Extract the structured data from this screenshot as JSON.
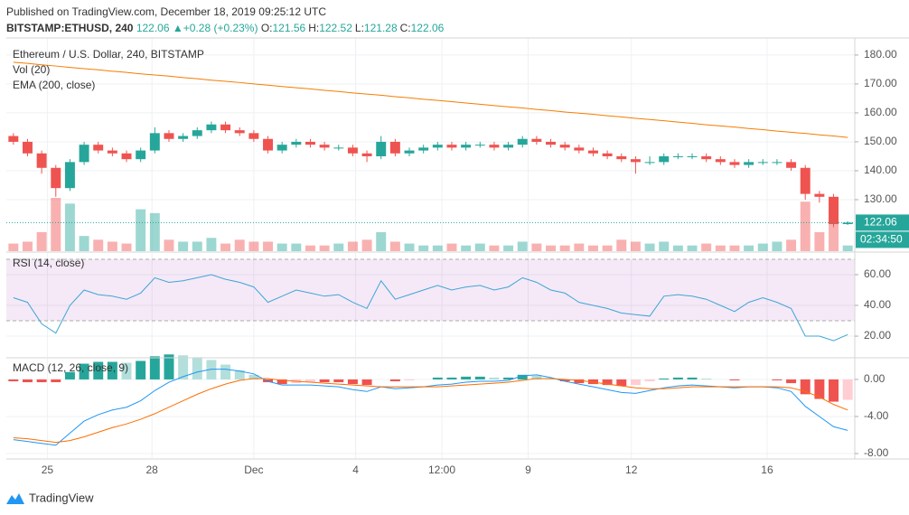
{
  "header": {
    "published": "Published on TradingView.com, December 18, 2019 09:25:12 UTC",
    "symbol": "BITSTAMP:ETHUSD, 240",
    "price": "122.06",
    "change": "+0.28 (+0.23%)",
    "ohlc": [
      {
        "label": "O:",
        "value": "121.56"
      },
      {
        "label": "H:",
        "value": "122.52"
      },
      {
        "label": "L:",
        "value": "121.28"
      },
      {
        "label": "C:",
        "value": "122.06"
      }
    ]
  },
  "chart_data": [
    {
      "type": "candlestick",
      "title": "Ethereum / U.S. Dollar, 240, BITSTAMP",
      "volume_title": "Vol (20)",
      "ema_title": "EMA (200, close)",
      "open": [
        152,
        150,
        146,
        141,
        134,
        143,
        149,
        147,
        146,
        144,
        147,
        153,
        151,
        152,
        154,
        156,
        154,
        153,
        151,
        147,
        149,
        150,
        149,
        148,
        148,
        146,
        145,
        150,
        146,
        147,
        148,
        149,
        148,
        149,
        149,
        148,
        149,
        151,
        150,
        149,
        148,
        147,
        146,
        145,
        144,
        143,
        143,
        145,
        145,
        145,
        144,
        143,
        142,
        143,
        143,
        143,
        141,
        132,
        131,
        121.56
      ],
      "high": [
        153,
        151,
        147,
        142,
        144,
        150,
        150,
        148,
        147,
        148,
        155,
        154,
        153,
        155,
        157,
        157,
        155,
        154,
        152,
        150,
        151,
        151,
        150,
        149,
        149,
        147,
        152,
        151,
        148,
        149,
        150,
        150,
        150,
        150,
        150,
        150,
        152,
        152,
        151,
        150,
        149,
        148,
        147,
        146,
        145,
        145,
        146,
        146,
        146,
        146,
        145,
        144,
        144,
        144,
        144,
        144,
        142,
        133,
        132,
        122.52
      ],
      "low": [
        149,
        145,
        139,
        131,
        133,
        142,
        146,
        145,
        143,
        143,
        146,
        150,
        150,
        151,
        153,
        153,
        152,
        150,
        146,
        146,
        148,
        148,
        147,
        147,
        145,
        143,
        144,
        145,
        145,
        146,
        147,
        147,
        147,
        148,
        147,
        147,
        148,
        149,
        148,
        147,
        146,
        145,
        144,
        143,
        139,
        142,
        142,
        144,
        144,
        143,
        142,
        141,
        141,
        142,
        142,
        140,
        130,
        129,
        120.5,
        121.28
      ],
      "close": [
        150,
        146,
        141,
        134,
        143,
        149,
        147,
        146,
        144,
        147,
        153,
        151,
        152,
        154,
        156,
        154,
        153,
        151,
        147,
        149,
        150,
        149,
        148,
        148,
        146,
        145,
        150,
        146,
        147,
        148,
        149,
        148,
        149,
        149,
        148,
        149,
        151,
        150,
        149,
        148,
        147,
        146,
        145,
        144,
        143,
        143,
        145,
        145,
        145,
        144,
        143,
        142,
        143,
        143,
        143,
        141,
        132,
        131,
        121.5,
        122.06
      ],
      "volume": [
        4,
        5,
        10,
        28,
        25,
        8,
        6,
        5,
        4,
        22,
        20,
        6,
        5,
        5,
        7,
        4,
        6,
        5,
        5,
        4,
        4,
        3,
        3,
        4,
        5,
        6,
        10,
        5,
        4,
        3,
        3,
        4,
        3,
        4,
        3,
        3,
        5,
        4,
        3,
        3,
        4,
        3,
        3,
        6,
        5,
        4,
        5,
        3,
        3,
        4,
        3,
        3,
        3,
        4,
        5,
        6,
        26,
        10,
        14,
        3
      ],
      "ema": [
        177.5,
        177.1,
        176.6,
        176.2,
        175.7,
        175.3,
        174.9,
        174.4,
        174.0,
        173.5,
        173.1,
        172.7,
        172.2,
        171.8,
        171.3,
        170.9,
        170.5,
        170.0,
        169.6,
        169.1,
        168.7,
        168.3,
        167.8,
        167.4,
        166.9,
        166.5,
        166.1,
        165.6,
        165.2,
        164.7,
        164.3,
        163.9,
        163.4,
        163.0,
        162.5,
        162.1,
        161.7,
        161.2,
        160.8,
        160.3,
        159.9,
        159.5,
        159.0,
        158.6,
        158.1,
        157.7,
        157.3,
        156.8,
        156.4,
        155.9,
        155.5,
        155.1,
        154.6,
        154.2,
        153.7,
        153.3,
        152.9,
        152.4,
        152.0,
        151.5
      ],
      "colors": {
        "up": "#26a69a",
        "down": "#ef5350",
        "ema": "#f57c00",
        "last": "#26a69a"
      },
      "last_price": 122.06,
      "countdown": "02:34:50",
      "ylim": [
        112.2,
        185.9
      ],
      "yticks": [
        {
          "value": 130,
          "label": "130.00"
        },
        {
          "value": 140,
          "label": "140.00"
        },
        {
          "value": 150,
          "label": "150.00"
        },
        {
          "value": 160,
          "label": "160.00"
        },
        {
          "value": 170,
          "label": "170.00"
        },
        {
          "value": 180,
          "label": "180.00"
        }
      ],
      "vlim": [
        0,
        112
      ],
      "xlim": [
        -0.5,
        59.5
      ],
      "xticks": [
        {
          "value": 2.4,
          "label": "25"
        },
        {
          "value": 9.8,
          "label": "28"
        },
        {
          "value": 17.0,
          "label": "Dec"
        },
        {
          "value": 24.2,
          "label": "4"
        },
        {
          "value": 30.3,
          "label": "12:00"
        },
        {
          "value": 36.4,
          "label": "9"
        },
        {
          "value": 43.7,
          "label": "12"
        },
        {
          "value": 53.3,
          "label": "16"
        }
      ],
      "grid": true
    },
    {
      "type": "line",
      "title": "RSI (14, close)",
      "values": [
        45,
        42,
        28,
        22,
        40,
        50,
        47,
        46,
        44,
        48,
        58,
        55,
        56,
        58,
        60,
        57,
        55,
        52,
        42,
        46,
        50,
        48,
        46,
        47,
        42,
        38,
        56,
        44,
        47,
        50,
        53,
        50,
        52,
        53,
        50,
        52,
        58,
        55,
        50,
        48,
        42,
        40,
        38,
        35,
        34,
        33,
        46,
        47,
        46,
        44,
        40,
        36,
        42,
        45,
        42,
        38,
        20,
        20,
        17,
        21
      ],
      "color": "#3ea5d6",
      "band": [
        30,
        70
      ],
      "band_color": "#9c27b0",
      "ylim": [
        6.5,
        74.1
      ],
      "yticks": [
        {
          "value": 20,
          "label": "20.00"
        },
        {
          "value": 40,
          "label": "40.00"
        },
        {
          "value": 60,
          "label": "60.00"
        }
      ]
    },
    {
      "type": "macd",
      "title": "MACD (12, 26, close, 9)",
      "macd": [
        -6.5,
        -6.7,
        -6.9,
        -7.1,
        -5.8,
        -4.5,
        -3.8,
        -3.3,
        -3.0,
        -2.3,
        -1.2,
        -0.3,
        0.3,
        0.8,
        1.1,
        1.1,
        0.9,
        0.6,
        -0.2,
        -0.6,
        -0.6,
        -0.6,
        -0.7,
        -0.8,
        -1.1,
        -1.3,
        -0.8,
        -1.0,
        -0.9,
        -0.8,
        -0.6,
        -0.5,
        -0.3,
        -0.2,
        -0.2,
        -0.1,
        0.4,
        0.5,
        0.2,
        -0.2,
        -0.5,
        -0.8,
        -1.1,
        -1.4,
        -1.5,
        -1.2,
        -0.9,
        -0.7,
        -0.6,
        -0.7,
        -0.8,
        -0.9,
        -0.8,
        -0.8,
        -0.9,
        -1.3,
        -2.9,
        -4.0,
        -5.1,
        -5.5
      ],
      "signal": [
        -6.3,
        -6.4,
        -6.6,
        -6.8,
        -6.6,
        -6.2,
        -5.7,
        -5.2,
        -4.8,
        -4.3,
        -3.7,
        -3.0,
        -2.3,
        -1.6,
        -1.0,
        -0.5,
        -0.1,
        0.1,
        0.1,
        -0.1,
        -0.2,
        -0.3,
        -0.4,
        -0.5,
        -0.6,
        -0.7,
        -0.8,
        -0.8,
        -0.8,
        -0.8,
        -0.8,
        -0.7,
        -0.6,
        -0.5,
        -0.4,
        -0.3,
        -0.1,
        0.1,
        0.1,
        0.0,
        -0.1,
        -0.3,
        -0.5,
        -0.7,
        -0.9,
        -1.0,
        -1.0,
        -0.9,
        -0.8,
        -0.8,
        -0.8,
        -0.8,
        -0.8,
        -0.8,
        -0.8,
        -0.9,
        -1.3,
        -1.9,
        -2.7,
        -3.3
      ],
      "histogram": [
        -0.2,
        -0.3,
        -0.3,
        -0.3,
        0.8,
        1.7,
        1.9,
        1.9,
        1.8,
        2.0,
        2.5,
        2.7,
        2.6,
        2.4,
        2.1,
        1.6,
        1.0,
        0.5,
        -0.3,
        -0.5,
        -0.4,
        -0.3,
        -0.3,
        -0.3,
        -0.5,
        -0.6,
        0.0,
        -0.2,
        -0.1,
        0.0,
        0.2,
        0.2,
        0.3,
        0.3,
        0.2,
        0.2,
        0.5,
        0.4,
        0.1,
        -0.2,
        -0.4,
        -0.5,
        -0.6,
        -0.7,
        -0.6,
        -0.2,
        0.1,
        0.2,
        0.2,
        0.1,
        0.0,
        -0.1,
        0.0,
        0.0,
        -0.1,
        -0.4,
        -1.6,
        -2.1,
        -2.4,
        -2.2
      ],
      "colors": {
        "macd": "#2196f3",
        "signal": "#ff6d00",
        "pos_up": "#26a69a",
        "pos_down": "#b2dfdb",
        "neg_down": "#ef5350",
        "neg_up": "#ffcdd2"
      },
      "ylim": [
        -8.49,
        2.24
      ],
      "yticks": [
        {
          "value": -8,
          "label": "-8.00"
        },
        {
          "value": -4,
          "label": "-4.00"
        },
        {
          "value": 0,
          "label": "0.00"
        }
      ]
    }
  ],
  "footer": {
    "brand": "TradingView"
  }
}
